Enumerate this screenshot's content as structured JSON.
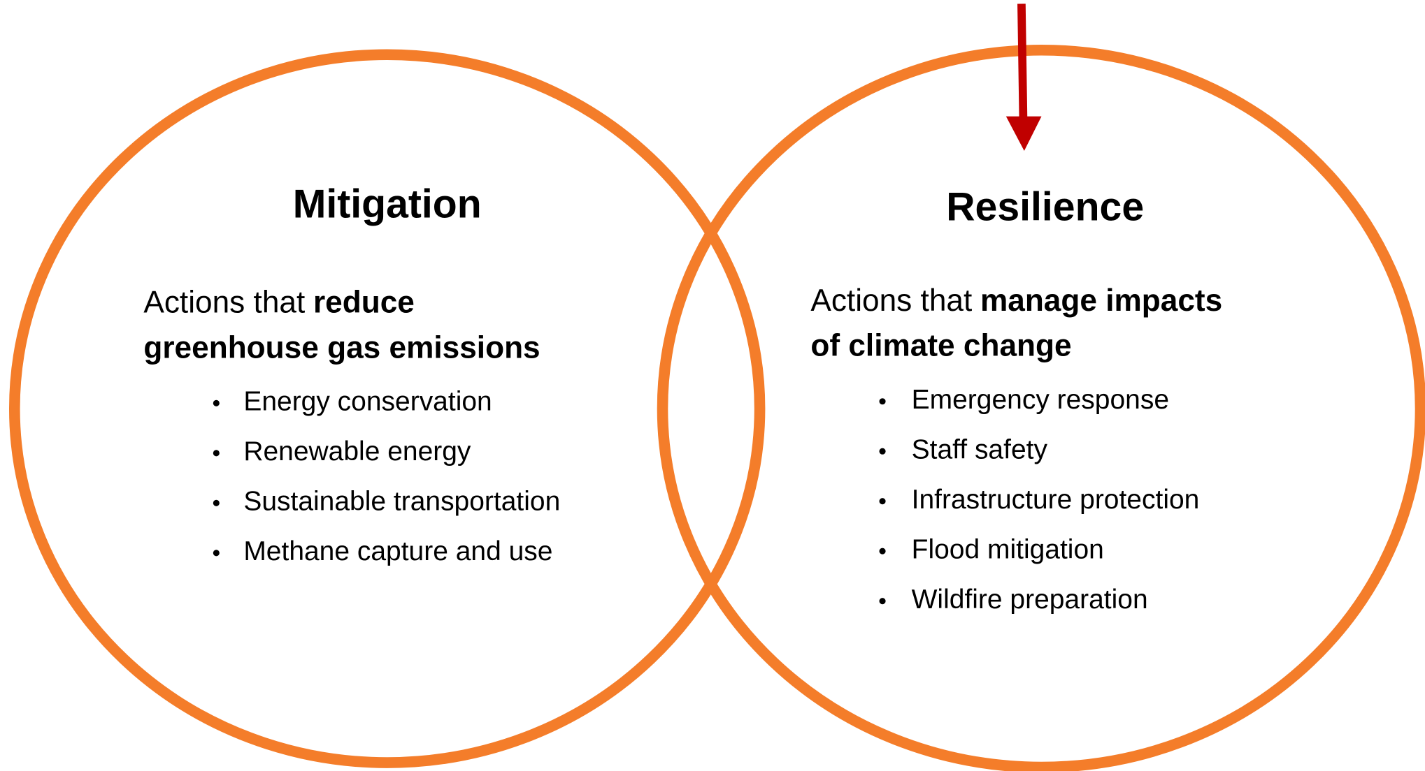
{
  "circles": [
    {
      "title": "Mitigation",
      "intro": "Actions that",
      "emphasis": [
        "reduce",
        "greenhouse gas emissions"
      ],
      "items": [
        "Energy conservation",
        "Renewable energy",
        "Sustainable transportation",
        "Methane capture and use"
      ]
    },
    {
      "title": "Resilience",
      "intro": "Actions that",
      "emphasis": [
        "manage impacts",
        "of climate change"
      ],
      "items": [
        "Emergency response",
        "Staff safety",
        "Infrastructure protection",
        "Flood mitigation",
        "Wildfire preparation"
      ]
    }
  ]
}
